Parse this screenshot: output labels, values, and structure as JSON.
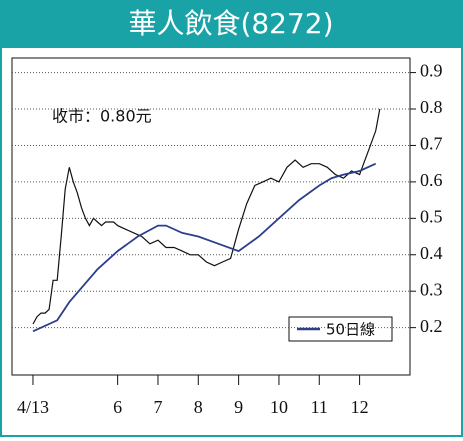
{
  "chart_data": {
    "type": "line",
    "title": "華人飲食(8272)",
    "annotation": "收市：0.80元",
    "xlim": [
      3.38,
      13.25
    ],
    "ylim": [
      0.07,
      0.94
    ],
    "xticks": [
      {
        "value": 3.9,
        "label": "4/13"
      },
      6,
      7,
      8,
      9,
      10,
      11,
      12
    ],
    "yticks": [
      0.2,
      0.3,
      0.4,
      0.5,
      0.6,
      0.7,
      0.8,
      0.9
    ],
    "grid": true,
    "legend": "bottom-right",
    "series": [
      {
        "color": "#111111",
        "x": [
          3.9,
          4.0,
          4.1,
          4.2,
          4.3,
          4.4,
          4.5,
          4.6,
          4.7,
          4.8,
          4.9,
          5.0,
          5.1,
          5.2,
          5.3,
          5.4,
          5.5,
          5.6,
          5.7,
          5.8,
          5.9,
          6.0,
          6.2,
          6.4,
          6.6,
          6.8,
          7.0,
          7.2,
          7.4,
          7.6,
          7.8,
          8.0,
          8.2,
          8.4,
          8.6,
          8.8,
          9.0,
          9.2,
          9.4,
          9.6,
          9.8,
          10.0,
          10.2,
          10.4,
          10.6,
          10.8,
          11.0,
          11.2,
          11.4,
          11.6,
          11.8,
          12.0,
          12.2,
          12.4,
          12.5
        ],
        "values": [
          0.21,
          0.23,
          0.24,
          0.24,
          0.25,
          0.33,
          0.33,
          0.45,
          0.58,
          0.64,
          0.6,
          0.57,
          0.53,
          0.5,
          0.48,
          0.5,
          0.49,
          0.48,
          0.49,
          0.49,
          0.49,
          0.48,
          0.47,
          0.46,
          0.45,
          0.43,
          0.44,
          0.42,
          0.42,
          0.41,
          0.4,
          0.4,
          0.38,
          0.37,
          0.38,
          0.39,
          0.47,
          0.54,
          0.59,
          0.6,
          0.61,
          0.6,
          0.64,
          0.66,
          0.64,
          0.65,
          0.65,
          0.64,
          0.62,
          0.61,
          0.63,
          0.62,
          0.68,
          0.74,
          0.8
        ]
      },
      {
        "name": "50日線",
        "color": "#2b3f8c",
        "x": [
          3.9,
          4.5,
          4.8,
          5.5,
          6.0,
          6.5,
          7.0,
          7.2,
          7.6,
          8.0,
          8.5,
          9.0,
          9.5,
          10.0,
          10.5,
          11.0,
          11.3,
          11.6,
          12.0,
          12.4
        ],
        "values": [
          0.19,
          0.22,
          0.27,
          0.36,
          0.41,
          0.45,
          0.48,
          0.48,
          0.46,
          0.45,
          0.43,
          0.41,
          0.45,
          0.5,
          0.55,
          0.59,
          0.61,
          0.62,
          0.63,
          0.65
        ]
      }
    ]
  }
}
